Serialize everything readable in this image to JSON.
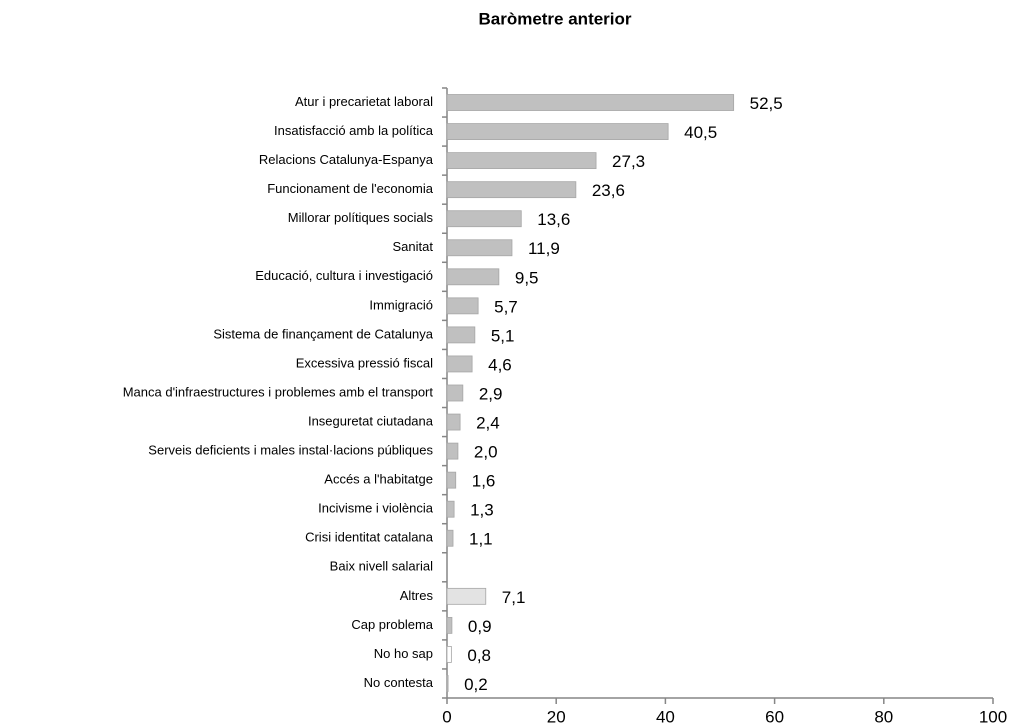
{
  "chart_data": {
    "type": "bar",
    "orientation": "horizontal",
    "title": "Baròmetre anterior",
    "categories": [
      "Atur i precarietat laboral",
      "Insatisfacció amb la política",
      "Relacions Catalunya-Espanya",
      "Funcionament de l'economia",
      "Millorar polítiques socials",
      "Sanitat",
      "Educació, cultura i investigació",
      "Immigració",
      "Sistema de finançament de Catalunya",
      "Excessiva pressió fiscal",
      "Manca d'infraestructures i problemes amb el transport",
      "Inseguretat ciutadana",
      "Serveis deficients i males instal·lacions públiques",
      "Accés a l'habitatge",
      "Incivisme i violència",
      "Crisi identitat catalana",
      "Baix nivell salarial",
      "Altres",
      "Cap problema",
      "No ho sap",
      "No contesta"
    ],
    "values": [
      52.5,
      40.5,
      27.3,
      23.6,
      13.6,
      11.9,
      9.5,
      5.7,
      5.1,
      4.6,
      2.9,
      2.4,
      2.0,
      1.6,
      1.3,
      1.1,
      null,
      7.1,
      0.9,
      0.8,
      0.2
    ],
    "value_labels": [
      "52,5",
      "40,5",
      "27,3",
      "23,6",
      "13,6",
      "11,9",
      "9,5",
      "5,7",
      "5,1",
      "4,6",
      "2,9",
      "2,4",
      "2,0",
      "1,6",
      "1,3",
      "1,1",
      null,
      "7,1",
      "0,9",
      "0,8",
      "0,2"
    ],
    "colors": [
      "#c0c0c0",
      "#c0c0c0",
      "#c0c0c0",
      "#c0c0c0",
      "#c0c0c0",
      "#c0c0c0",
      "#c0c0c0",
      "#c0c0c0",
      "#c0c0c0",
      "#c0c0c0",
      "#c0c0c0",
      "#c0c0c0",
      "#c0c0c0",
      "#c0c0c0",
      "#c0c0c0",
      "#c0c0c0",
      "#c0c0c0",
      "#e3e3e3",
      "#c0c0c0",
      "#ffffff",
      "#c0c0c0"
    ],
    "xlim": [
      0,
      100
    ],
    "xticks": [
      0,
      20,
      40,
      60,
      80,
      100
    ],
    "grid": false
  }
}
